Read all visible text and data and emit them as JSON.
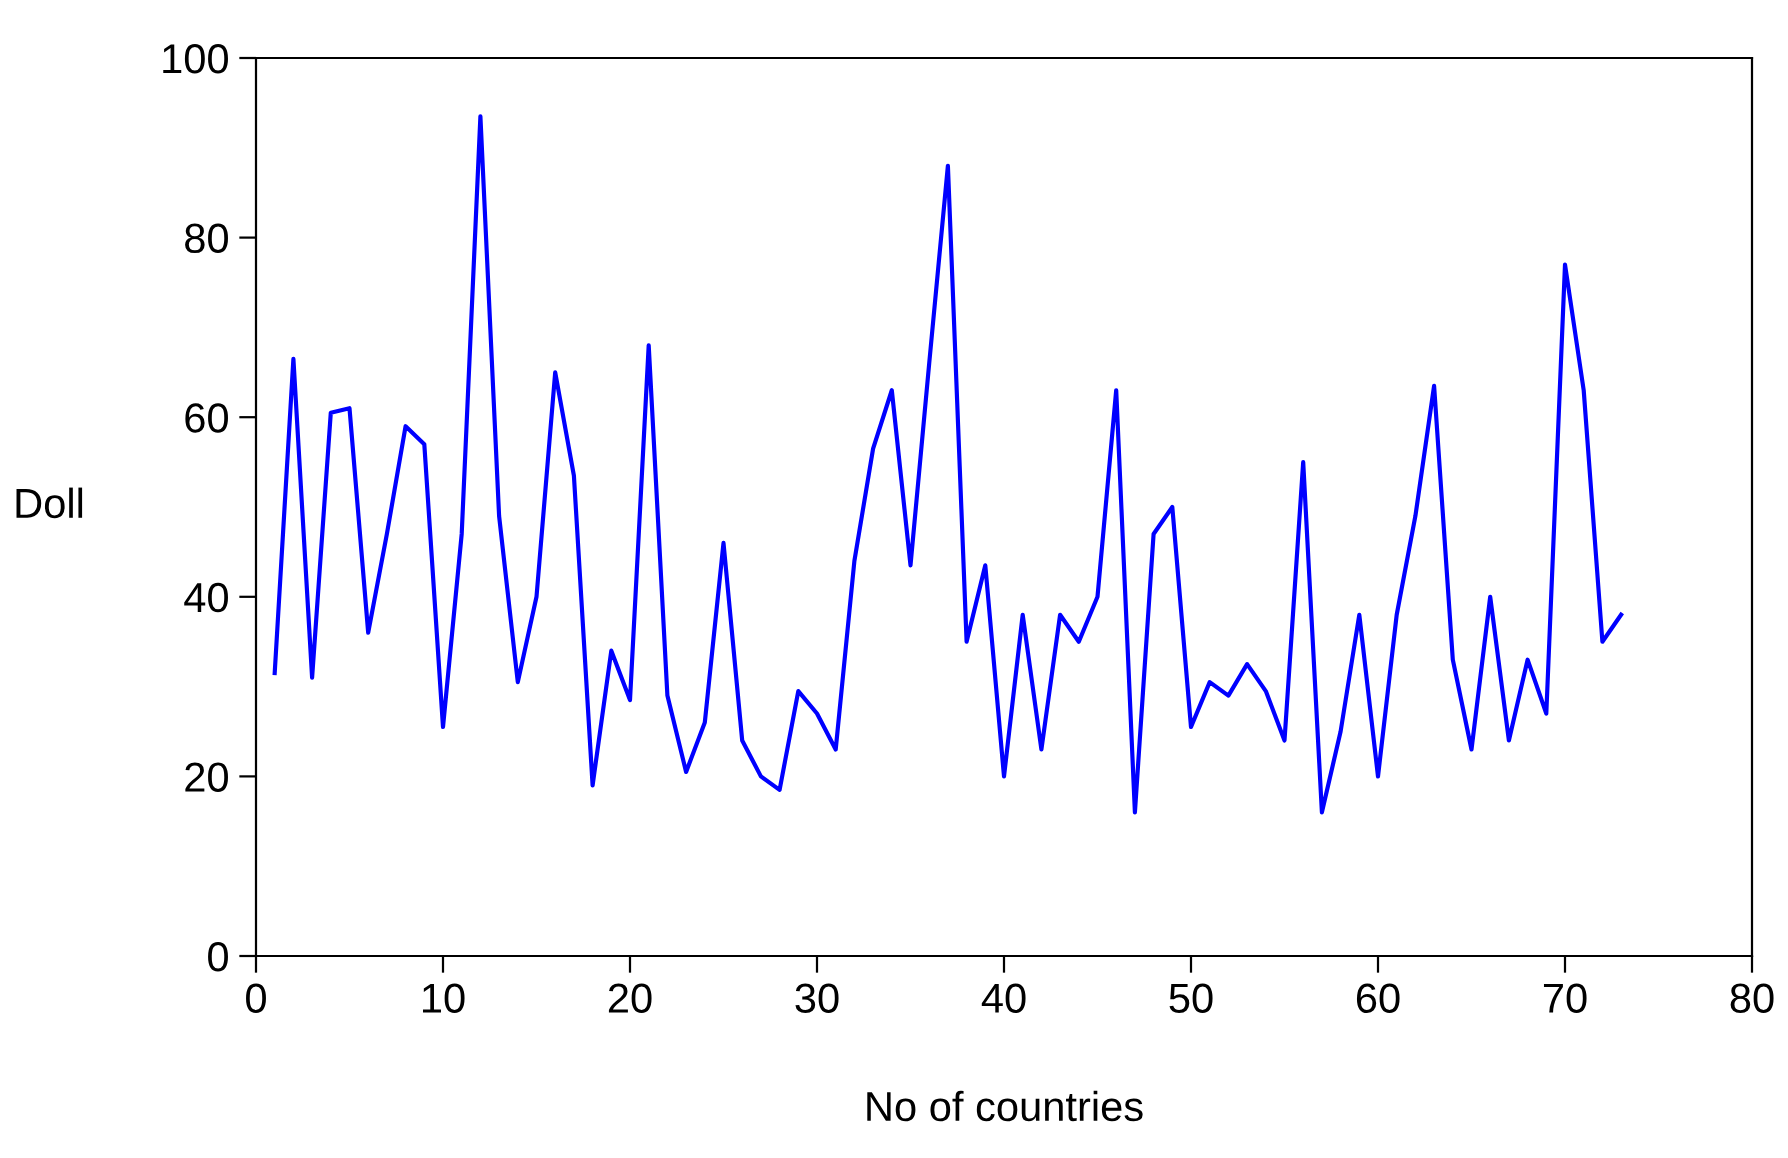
{
  "chart_data": {
    "type": "line",
    "xlabel": "No of countries",
    "ylabel": "Doll",
    "x": [
      1,
      2,
      3,
      4,
      5,
      6,
      7,
      8,
      9,
      10,
      11,
      12,
      13,
      14,
      15,
      16,
      17,
      18,
      19,
      20,
      21,
      22,
      23,
      24,
      25,
      26,
      27,
      28,
      29,
      30,
      31,
      32,
      33,
      34,
      35,
      36,
      37,
      38,
      39,
      40,
      41,
      42,
      43,
      44,
      45,
      46,
      47,
      48,
      49,
      50,
      51,
      52,
      53,
      54,
      55,
      56,
      57,
      58,
      59,
      60,
      61,
      62,
      63,
      64,
      65,
      66,
      67,
      68,
      69,
      70,
      71,
      72,
      73
    ],
    "series": [
      {
        "color": "#0000ff",
        "values": [
          31.5,
          66.5,
          31,
          60.5,
          61,
          36,
          47,
          59,
          57,
          25.5,
          47,
          93.5,
          49,
          30.5,
          40,
          65,
          53.5,
          19,
          34,
          28.5,
          68,
          29,
          20.5,
          26,
          46,
          24,
          20,
          18.5,
          29.5,
          27,
          23,
          44,
          56.5,
          63,
          43.5,
          66,
          88,
          35,
          43.5,
          20,
          38,
          23,
          38,
          35,
          40,
          63,
          16,
          47,
          50,
          25.5,
          30.5,
          29,
          32.5,
          29.5,
          24,
          55,
          16,
          25,
          38,
          20,
          38,
          49,
          63.5,
          33,
          23,
          40,
          24,
          33,
          27,
          77,
          63,
          35,
          38
        ]
      }
    ],
    "xlim": [
      0,
      80
    ],
    "xticks": [
      0,
      10,
      20,
      30,
      40,
      50,
      60,
      70,
      80
    ],
    "ylim": [
      0,
      100
    ],
    "yticks": [
      0,
      20,
      40,
      60,
      80,
      100
    ],
    "grid": false,
    "legend": false,
    "marker": "none",
    "line_style": "solid"
  }
}
